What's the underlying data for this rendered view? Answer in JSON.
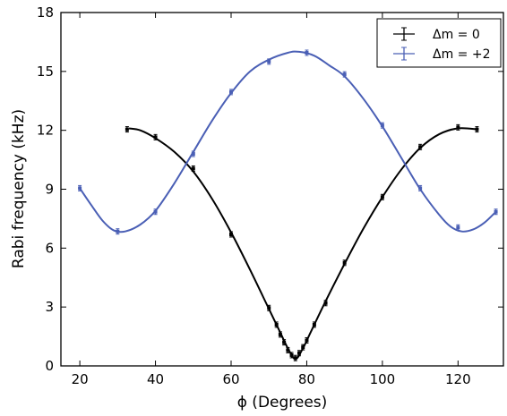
{
  "chart_data": {
    "type": "scatter",
    "title": "",
    "xlabel": "ϕ (Degrees)",
    "ylabel": "Rabi frequency (kHz)",
    "xlim": [
      15,
      132
    ],
    "ylim": [
      0,
      18
    ],
    "xticks": [
      "20",
      "40",
      "60",
      "80",
      "100",
      "120"
    ],
    "yticks": [
      "0",
      "3",
      "6",
      "9",
      "12",
      "15",
      "18"
    ],
    "grid": false,
    "legend_position": "top-right",
    "series": [
      {
        "name": "Δm = 0",
        "color": "#000000",
        "points": [
          {
            "x": 32.5,
            "y": 12.05
          },
          {
            "x": 40,
            "y": 11.65
          },
          {
            "x": 50,
            "y": 10.05
          },
          {
            "x": 60,
            "y": 6.7
          },
          {
            "x": 70,
            "y": 2.95
          },
          {
            "x": 72,
            "y": 2.1
          },
          {
            "x": 73,
            "y": 1.6
          },
          {
            "x": 74,
            "y": 1.2
          },
          {
            "x": 75,
            "y": 0.8
          },
          {
            "x": 76,
            "y": 0.55
          },
          {
            "x": 77,
            "y": 0.4
          },
          {
            "x": 78,
            "y": 0.65
          },
          {
            "x": 79,
            "y": 0.95
          },
          {
            "x": 80,
            "y": 1.3
          },
          {
            "x": 82,
            "y": 2.1
          },
          {
            "x": 85,
            "y": 3.2
          },
          {
            "x": 90,
            "y": 5.25
          },
          {
            "x": 100,
            "y": 8.6
          },
          {
            "x": 110,
            "y": 11.15
          },
          {
            "x": 120,
            "y": 12.15
          },
          {
            "x": 125,
            "y": 12.05
          }
        ],
        "fit_curve": [
          {
            "x": 33,
            "y": 12.1
          },
          {
            "x": 36,
            "y": 12.0
          },
          {
            "x": 40,
            "y": 11.6
          },
          {
            "x": 45,
            "y": 10.9
          },
          {
            "x": 50,
            "y": 9.9
          },
          {
            "x": 55,
            "y": 8.5
          },
          {
            "x": 60,
            "y": 6.8
          },
          {
            "x": 65,
            "y": 4.9
          },
          {
            "x": 70,
            "y": 2.9
          },
          {
            "x": 73,
            "y": 1.7
          },
          {
            "x": 75,
            "y": 0.9
          },
          {
            "x": 77,
            "y": 0.35
          },
          {
            "x": 79,
            "y": 0.9
          },
          {
            "x": 81,
            "y": 1.7
          },
          {
            "x": 85,
            "y": 3.3
          },
          {
            "x": 90,
            "y": 5.2
          },
          {
            "x": 95,
            "y": 7.0
          },
          {
            "x": 100,
            "y": 8.6
          },
          {
            "x": 105,
            "y": 10.0
          },
          {
            "x": 110,
            "y": 11.1
          },
          {
            "x": 115,
            "y": 11.8
          },
          {
            "x": 120,
            "y": 12.1
          },
          {
            "x": 125,
            "y": 12.05
          }
        ]
      },
      {
        "name": "Δm = +2",
        "color": "#4a5fb5",
        "points": [
          {
            "x": 20,
            "y": 9.05
          },
          {
            "x": 30,
            "y": 6.85
          },
          {
            "x": 40,
            "y": 7.85
          },
          {
            "x": 50,
            "y": 10.8
          },
          {
            "x": 60,
            "y": 13.95
          },
          {
            "x": 70,
            "y": 15.5
          },
          {
            "x": 80,
            "y": 15.95
          },
          {
            "x": 90,
            "y": 14.85
          },
          {
            "x": 100,
            "y": 12.25
          },
          {
            "x": 110,
            "y": 9.05
          },
          {
            "x": 120,
            "y": 7.05
          },
          {
            "x": 130,
            "y": 7.85
          }
        ],
        "fit_curve": [
          {
            "x": 20,
            "y": 9.05
          },
          {
            "x": 23,
            "y": 8.2
          },
          {
            "x": 26,
            "y": 7.4
          },
          {
            "x": 29,
            "y": 6.9
          },
          {
            "x": 32,
            "y": 6.85
          },
          {
            "x": 36,
            "y": 7.2
          },
          {
            "x": 40,
            "y": 7.9
          },
          {
            "x": 45,
            "y": 9.3
          },
          {
            "x": 50,
            "y": 10.9
          },
          {
            "x": 55,
            "y": 12.5
          },
          {
            "x": 60,
            "y": 13.9
          },
          {
            "x": 65,
            "y": 15.0
          },
          {
            "x": 70,
            "y": 15.6
          },
          {
            "x": 75,
            "y": 15.95
          },
          {
            "x": 78,
            "y": 16.0
          },
          {
            "x": 82,
            "y": 15.8
          },
          {
            "x": 86,
            "y": 15.3
          },
          {
            "x": 90,
            "y": 14.75
          },
          {
            "x": 95,
            "y": 13.6
          },
          {
            "x": 100,
            "y": 12.2
          },
          {
            "x": 105,
            "y": 10.6
          },
          {
            "x": 110,
            "y": 9.0
          },
          {
            "x": 115,
            "y": 7.7
          },
          {
            "x": 118,
            "y": 7.1
          },
          {
            "x": 121,
            "y": 6.85
          },
          {
            "x": 124,
            "y": 6.95
          },
          {
            "x": 127,
            "y": 7.3
          },
          {
            "x": 130,
            "y": 7.85
          }
        ]
      }
    ]
  }
}
